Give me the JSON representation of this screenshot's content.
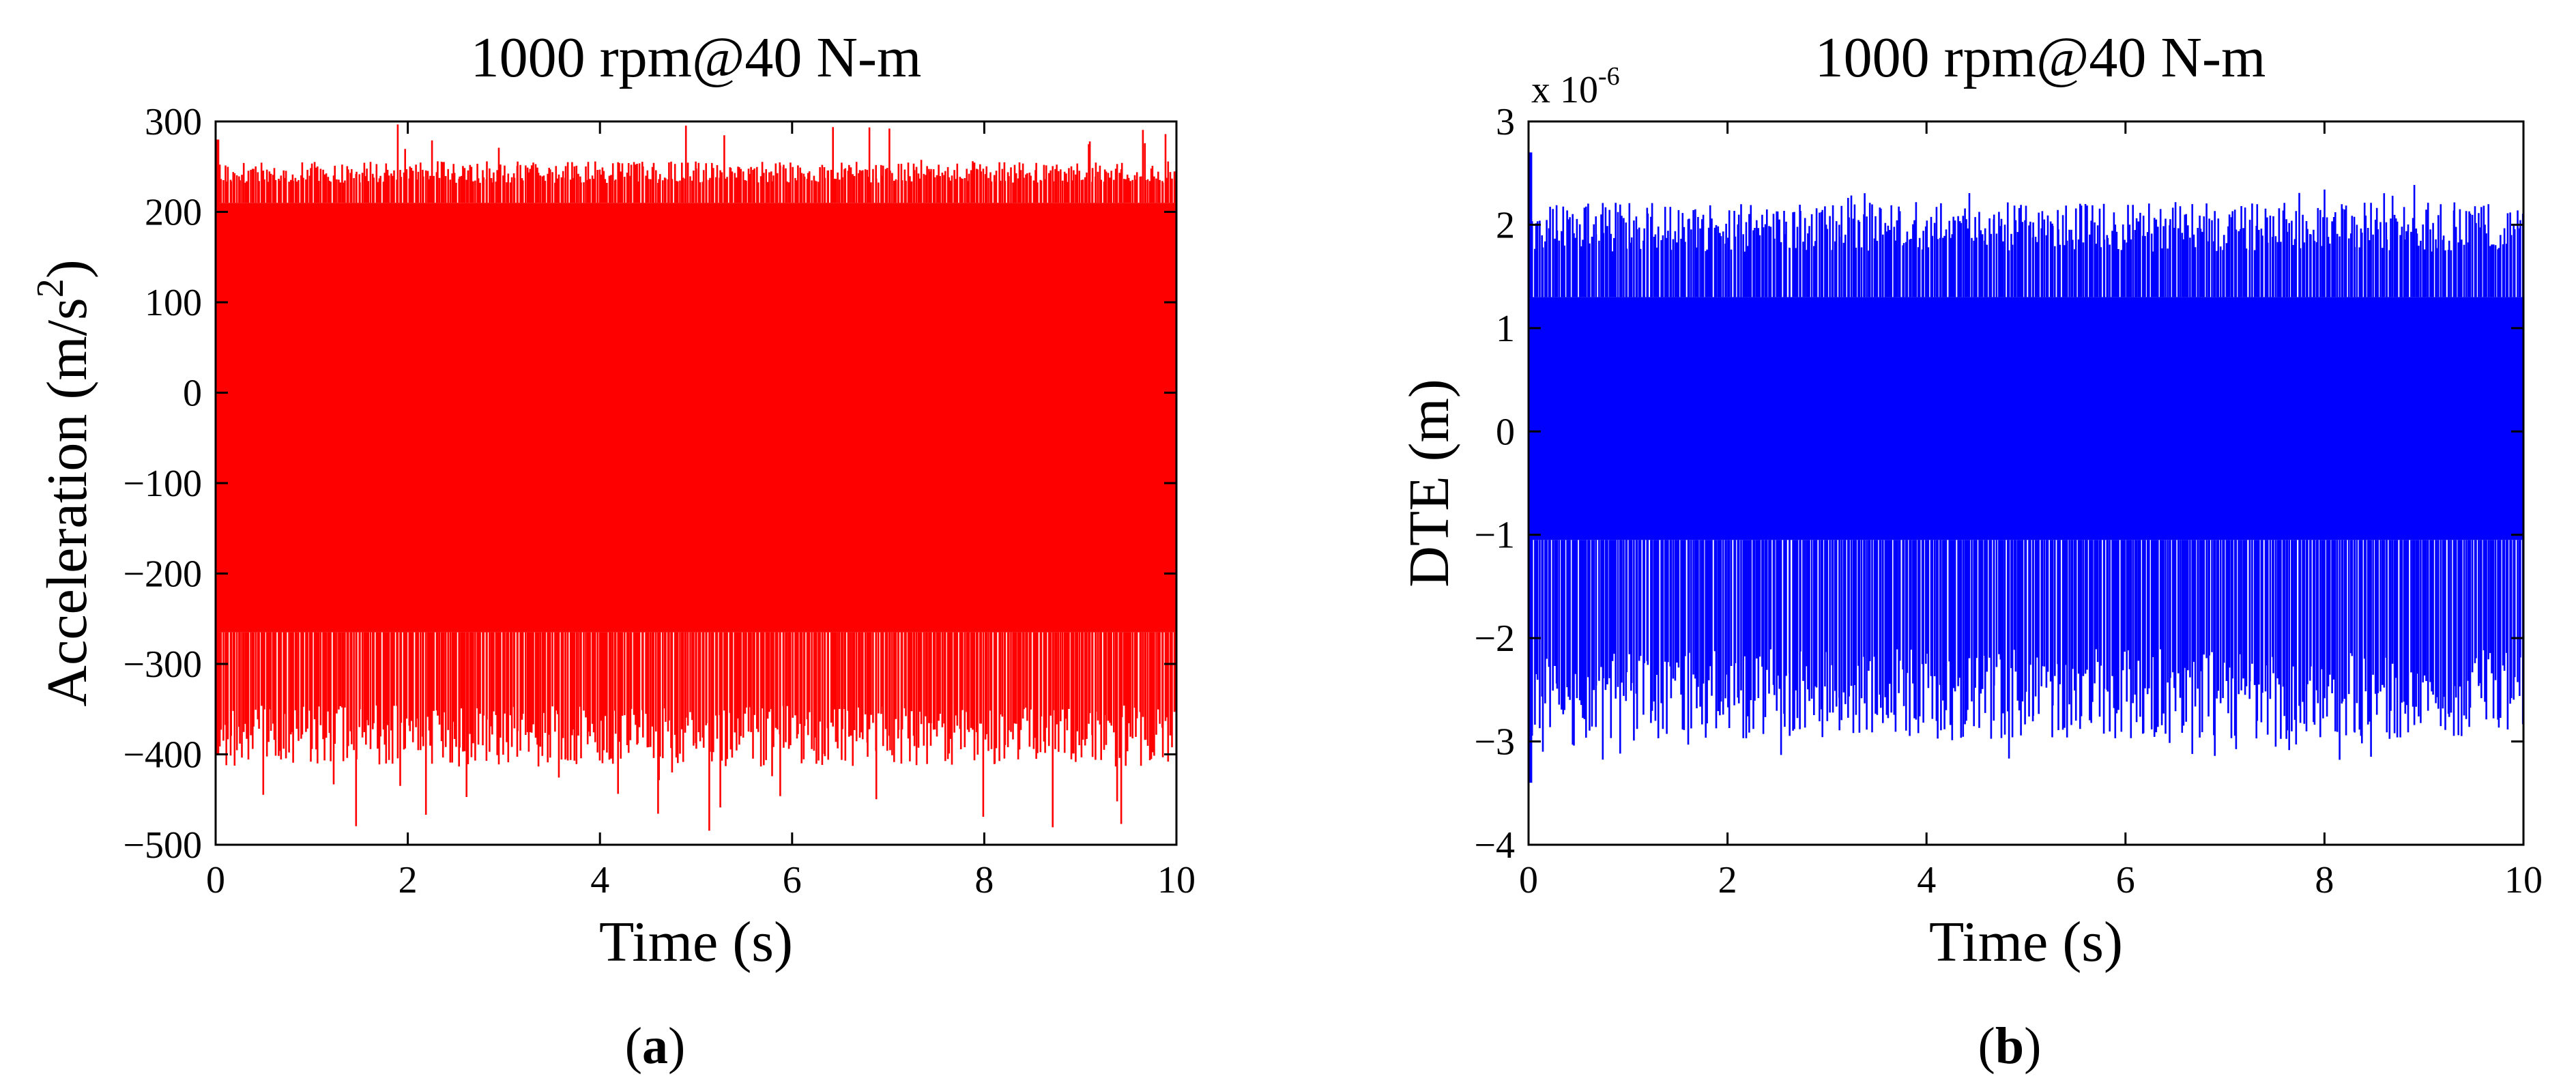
{
  "colors": {
    "panel_a_series": "#ff0000",
    "panel_b_series": "#0000ff",
    "axis": "#000000"
  },
  "chart_data": [
    {
      "type": "line",
      "panel_label": "a",
      "title": "1000 rpm@40 N-m",
      "xlabel": "Time (s)",
      "ylabel_text": "Acceleration (m/s",
      "ylabel_superscript": "2",
      "ylabel_close": ")",
      "xlim": [
        0,
        10
      ],
      "ylim": [
        -500,
        300
      ],
      "xticks": [
        0,
        2,
        4,
        6,
        8,
        10
      ],
      "xtick_labels": [
        "0",
        "2",
        "4",
        "6",
        "8",
        "10"
      ],
      "yticks": [
        -500,
        -400,
        -300,
        -200,
        -100,
        0,
        100,
        200,
        300
      ],
      "ytick_labels": [
        "-500",
        "-400",
        "-300",
        "-200",
        "-100",
        "0",
        "100",
        "200",
        "300"
      ],
      "grid": false,
      "series": [
        {
          "name": "Acceleration",
          "color": "#ff0000",
          "description": "dense vibration signal",
          "band_upper": 210,
          "band_lower": -265,
          "peak_upper_typical": 250,
          "peak_upper_max": 300,
          "peak_lower_typical": -400,
          "peak_lower_min": -490,
          "start_value": 280
        }
      ]
    },
    {
      "type": "line",
      "panel_label": "b",
      "title": "1000 rpm@40 N-m",
      "xlabel": "Time (s)",
      "ylabel_text": "DTE (m)",
      "multiplier_base": "x 10",
      "multiplier_exponent": "-6",
      "xlim": [
        0,
        10
      ],
      "ylim": [
        -4,
        3
      ],
      "xticks": [
        0,
        2,
        4,
        6,
        8,
        10
      ],
      "xtick_labels": [
        "0",
        "2",
        "4",
        "6",
        "8",
        "10"
      ],
      "yticks": [
        -4,
        -3,
        -2,
        -1,
        0,
        1,
        2,
        3
      ],
      "ytick_labels": [
        "-4",
        "-3",
        "-2",
        "-1",
        "0",
        "1",
        "2",
        "3"
      ],
      "grid": false,
      "series": [
        {
          "name": "DTE",
          "color": "#0000ff",
          "description": "dense dynamic transmission error signal (units 10^-6 m)",
          "band_upper": 1.3,
          "band_lower": -1.05,
          "peak_upper_typical": 2.1,
          "peak_upper_max": 2.4,
          "peak_lower_typical": -2.8,
          "peak_lower_min": -3.2,
          "start_value": 2.7,
          "start_min": -3.4
        }
      ]
    }
  ]
}
